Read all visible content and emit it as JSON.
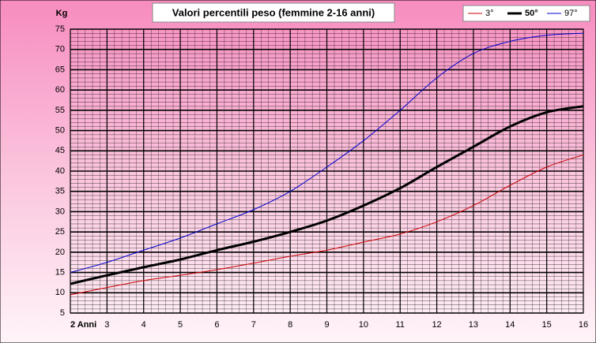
{
  "chart_data": {
    "type": "line",
    "title": "Valori percentili peso (femmine 2-16 anni)",
    "y_label": "Kg",
    "x": [
      2,
      3,
      4,
      5,
      6,
      7,
      8,
      9,
      10,
      11,
      12,
      13,
      14,
      15,
      16
    ],
    "series": [
      {
        "name": "3°",
        "color": "#cc0000",
        "width": 1,
        "values": [
          9.5,
          11.3,
          13,
          14.3,
          15.7,
          17.3,
          19,
          20.5,
          22.5,
          24.5,
          27.5,
          31.5,
          36.5,
          41,
          44
        ]
      },
      {
        "name": "50°",
        "color": "#000000",
        "width": 3,
        "values": [
          12.2,
          14.3,
          16.3,
          18.2,
          20.5,
          22.6,
          25,
          27.8,
          31.5,
          35.8,
          41,
          46,
          51,
          54.5,
          56
        ]
      },
      {
        "name": "97°",
        "color": "#0000cc",
        "width": 1,
        "values": [
          15,
          17.5,
          20.5,
          23.5,
          27,
          30.5,
          35,
          41,
          47.5,
          55,
          63,
          69,
          72,
          73.5,
          74
        ]
      }
    ],
    "xlim": [
      2,
      16
    ],
    "xticks": [
      {
        "value": 2,
        "label": "2 Anni"
      },
      3,
      4,
      5,
      6,
      7,
      8,
      9,
      10,
      11,
      12,
      13,
      14,
      15,
      16
    ],
    "ylim": [
      5,
      75
    ],
    "yticks": [
      5,
      10,
      15,
      20,
      25,
      30,
      35,
      40,
      45,
      50,
      55,
      60,
      65,
      70,
      75
    ],
    "grid": true,
    "legend": "top-right"
  }
}
